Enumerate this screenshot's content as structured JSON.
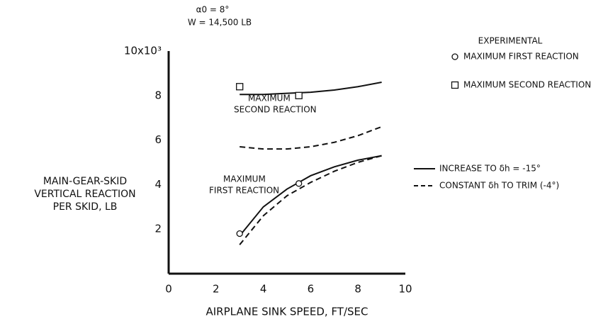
{
  "chart_data": {
    "type": "line",
    "title": [
      "α0 = 8°",
      "W = 14,500 LB"
    ],
    "x_label": "AIRPLANE SINK SPEED, FT/SEC",
    "y_label": [
      "MAIN-GEAR-SKID",
      "VERTICAL REACTION",
      "PER SKID, LB"
    ],
    "xlim": [
      0,
      10
    ],
    "xticks": [
      0,
      2,
      4,
      6,
      8,
      10
    ],
    "ylim": [
      0,
      10
    ],
    "yticks": [
      2,
      4,
      6,
      8,
      {
        "value": 10,
        "label": "10x10³"
      }
    ],
    "grid": false,
    "color": "#111111",
    "annotations": [
      [
        "MAXIMUM",
        "SECOND REACTION"
      ],
      [
        "MAXIMUM",
        "FIRST REACTION"
      ]
    ],
    "series": [
      {
        "name": "INCREASE TO δh = -15°",
        "dash": false,
        "curves": [
          {
            "x": [
              3,
              4,
              5,
              6,
              7,
              8,
              9
            ],
            "values": [
              8.05,
              8.05,
              8.1,
              8.15,
              8.25,
              8.4,
              8.6
            ]
          },
          {
            "x": [
              3,
              4,
              5,
              6,
              7,
              8,
              9
            ],
            "values": [
              1.7,
              3.0,
              3.8,
              4.4,
              4.8,
              5.1,
              5.3
            ]
          }
        ]
      },
      {
        "name": "CONSTANT δh TO TRIM (-4°)",
        "dash": true,
        "curves": [
          {
            "x": [
              3,
              4,
              5,
              6,
              7,
              8,
              9
            ],
            "values": [
              5.7,
              5.6,
              5.6,
              5.7,
              5.9,
              6.2,
              6.6
            ]
          },
          {
            "x": [
              3,
              4,
              5,
              6,
              7,
              8,
              9
            ],
            "values": [
              1.3,
              2.6,
              3.5,
              4.1,
              4.6,
              5.0,
              5.3
            ]
          }
        ]
      }
    ],
    "experimental": {
      "title": "EXPERIMENTAL",
      "series": [
        {
          "name": "MAXIMUM FIRST REACTION",
          "marker": "circle",
          "x": [
            3,
            5.5
          ],
          "values": [
            1.8,
            4.05
          ]
        },
        {
          "name": "MAXIMUM SECOND REACTION",
          "marker": "square",
          "x": [
            3,
            5.5
          ],
          "values": [
            8.4,
            8.0
          ]
        }
      ]
    }
  }
}
